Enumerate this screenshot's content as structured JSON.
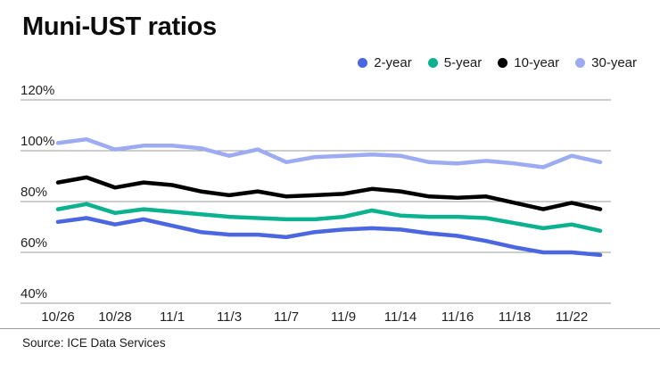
{
  "title": "Muni-UST ratios",
  "source": "Source: ICE Data Services",
  "colors": {
    "grid": "#9b9b9b",
    "axis_text": "#1f1f1f",
    "title_text": "#0d0d0d"
  },
  "chart_data": {
    "type": "line",
    "title": "Muni-UST ratios",
    "xlabel": "",
    "ylabel": "",
    "ylim": [
      40,
      120
    ],
    "yticks": [
      120,
      100,
      80,
      60,
      40
    ],
    "ytick_suffix": "%",
    "grid": "horizontal",
    "legend_position": "top-right",
    "x_label_every": 2,
    "x": [
      "10/26",
      "10/27",
      "10/28",
      "10/31",
      "11/1",
      "11/2",
      "11/3",
      "11/4",
      "11/7",
      "11/8",
      "11/9",
      "11/10",
      "11/14",
      "11/15",
      "11/16",
      "11/17",
      "11/18",
      "11/21",
      "11/22",
      "11/23"
    ],
    "x_labels_shown": [
      "10/26",
      "10/28",
      "11/1",
      "11/3",
      "11/7",
      "11/9",
      "11/14",
      "11/16",
      "11/18",
      "11/22"
    ],
    "series": [
      {
        "name": "2-year",
        "color": "#4a66e0",
        "values": [
          72,
          73.5,
          71,
          73,
          70.5,
          68,
          67,
          67,
          66,
          68,
          69,
          69.5,
          69,
          67.5,
          66.5,
          64.5,
          62,
          60,
          60,
          59
        ]
      },
      {
        "name": "5-year",
        "color": "#0cb18f",
        "values": [
          77,
          79,
          75.5,
          77,
          76,
          75,
          74,
          73.5,
          73,
          73,
          74,
          76.5,
          74.5,
          74,
          74,
          73.5,
          71.5,
          69.5,
          71,
          68.5
        ]
      },
      {
        "name": "10-year",
        "color": "#000000",
        "values": [
          87.5,
          89.5,
          85.5,
          87.5,
          86.5,
          84,
          82.5,
          84,
          82,
          82.5,
          83,
          85,
          84,
          82,
          81.5,
          82,
          79.5,
          77,
          79.5,
          77
        ]
      },
      {
        "name": "30-year",
        "color": "#9dacf2",
        "values": [
          103,
          104.5,
          100.5,
          102,
          102,
          101,
          98,
          100.5,
          95.5,
          97.5,
          98,
          98.5,
          98,
          95.5,
          95,
          96,
          95,
          93.5,
          98,
          95.5
        ]
      }
    ]
  }
}
